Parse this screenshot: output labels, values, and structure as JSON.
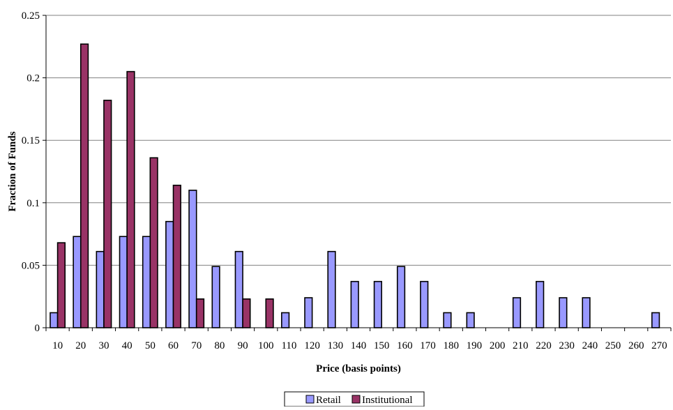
{
  "chart_data": {
    "type": "bar",
    "xlabel": "Price (basis points)",
    "ylabel": "Fraction of Funds",
    "ylim": [
      0,
      0.25
    ],
    "yticks": [
      0,
      0.05,
      0.1,
      0.15,
      0.2,
      0.25
    ],
    "ytick_labels": [
      "0",
      "0.05",
      "0.1",
      "0.15",
      "0.2",
      "0.25"
    ],
    "grid": true,
    "legend_position": "bottom-center",
    "categories": [
      "10",
      "20",
      "30",
      "40",
      "50",
      "60",
      "70",
      "80",
      "90",
      "100",
      "110",
      "120",
      "130",
      "140",
      "150",
      "160",
      "170",
      "180",
      "190",
      "200",
      "210",
      "220",
      "230",
      "240",
      "250",
      "260",
      "270"
    ],
    "series": [
      {
        "name": "Retail",
        "color": "#9999ff",
        "values": [
          0.012,
          0.073,
          0.061,
          0.073,
          0.073,
          0.085,
          0.11,
          0.049,
          0.061,
          0,
          0.012,
          0.024,
          0.061,
          0.037,
          0.037,
          0.049,
          0.037,
          0.012,
          0.012,
          0,
          0.024,
          0.037,
          0.024,
          0.024,
          0,
          0,
          0.012
        ]
      },
      {
        "name": "Institutional",
        "color": "#993366",
        "values": [
          0.068,
          0.227,
          0.182,
          0.205,
          0.136,
          0.114,
          0.023,
          0,
          0.023,
          0.023,
          0,
          0,
          0,
          0,
          0,
          0,
          0,
          0,
          0,
          0,
          0,
          0,
          0,
          0,
          0,
          0,
          0
        ]
      }
    ]
  }
}
